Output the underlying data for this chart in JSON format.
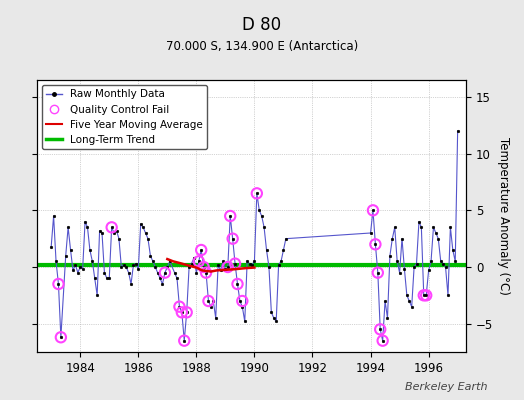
{
  "title": "D 80",
  "subtitle": "70.000 S, 134.900 E (Antarctica)",
  "ylabel": "Temperature Anomaly (°C)",
  "credit": "Berkeley Earth",
  "ylim": [
    -7.5,
    16.5
  ],
  "yticks": [
    -5,
    0,
    5,
    10,
    15
  ],
  "xlim": [
    1982.5,
    1997.3
  ],
  "xticks": [
    1984,
    1986,
    1988,
    1990,
    1992,
    1994,
    1996
  ],
  "bg_color": "#e8e8e8",
  "plot_bg_color": "#ffffff",
  "raw_line_color": "#5555cc",
  "raw_marker_color": "#000000",
  "qc_fail_color": "#ff44ff",
  "moving_avg_color": "#dd0000",
  "trend_color": "#00bb00",
  "raw_data_times": [
    1983.0,
    1983.083,
    1983.167,
    1983.25,
    1983.333,
    1983.5,
    1983.583,
    1983.667,
    1983.75,
    1983.833,
    1983.917,
    1984.0,
    1984.083,
    1984.167,
    1984.25,
    1984.333,
    1984.417,
    1984.5,
    1984.583,
    1984.667,
    1984.75,
    1984.833,
    1984.917,
    1985.0,
    1985.083,
    1985.167,
    1985.25,
    1985.333,
    1985.417,
    1985.5,
    1985.583,
    1985.667,
    1985.75,
    1985.833,
    1985.917,
    1986.0,
    1986.083,
    1986.167,
    1986.25,
    1986.333,
    1986.417,
    1986.5,
    1986.583,
    1986.667,
    1986.75,
    1986.833,
    1986.917,
    1987.0,
    1987.083,
    1987.25,
    1987.333,
    1987.417,
    1987.5,
    1987.583,
    1987.667,
    1987.75,
    1987.833,
    1987.917,
    1988.0,
    1988.083,
    1988.167,
    1988.25,
    1988.333,
    1988.417,
    1988.5,
    1988.583,
    1988.667,
    1988.75,
    1988.833,
    1988.917,
    1989.0,
    1989.083,
    1989.167,
    1989.25,
    1989.333,
    1989.417,
    1989.5,
    1989.583,
    1989.667,
    1989.75,
    1989.833,
    1989.917,
    1990.0,
    1990.083,
    1990.167,
    1990.25,
    1990.333,
    1990.417,
    1990.5,
    1990.583,
    1990.667,
    1990.75,
    1990.833,
    1990.917,
    1991.0,
    1991.083,
    1994.0,
    1994.083,
    1994.167,
    1994.25,
    1994.333,
    1994.417,
    1994.5,
    1994.583,
    1994.667,
    1994.75,
    1994.833,
    1994.917,
    1995.0,
    1995.083,
    1995.167,
    1995.25,
    1995.333,
    1995.417,
    1995.5,
    1995.583,
    1995.667,
    1995.75,
    1995.833,
    1995.917,
    1996.0,
    1996.083,
    1996.167,
    1996.25,
    1996.333,
    1996.417,
    1996.5,
    1996.583,
    1996.667,
    1996.75,
    1996.833,
    1996.917,
    1997.0
  ],
  "raw_data_values": [
    1.8,
    4.5,
    0.5,
    -1.5,
    -6.2,
    1.0,
    3.5,
    1.5,
    -0.3,
    0.2,
    -0.5,
    0.0,
    -0.2,
    4.0,
    3.5,
    1.5,
    0.5,
    -1.0,
    -2.5,
    3.2,
    3.0,
    -0.5,
    -1.0,
    -1.0,
    3.5,
    3.0,
    3.2,
    2.5,
    0.0,
    0.2,
    0.0,
    -0.5,
    -1.5,
    0.2,
    0.3,
    -0.2,
    3.8,
    3.5,
    3.0,
    2.5,
    1.0,
    0.5,
    0.0,
    -0.5,
    -1.0,
    -1.5,
    -0.5,
    0.0,
    0.5,
    -0.5,
    -1.0,
    -3.5,
    -4.0,
    -6.5,
    -4.0,
    0.0,
    0.3,
    0.8,
    -0.5,
    0.5,
    1.5,
    0.0,
    -0.5,
    -3.0,
    -3.5,
    -3.0,
    -4.5,
    0.2,
    -0.3,
    0.5,
    -0.2,
    0.0,
    4.5,
    2.5,
    0.3,
    -1.5,
    -3.0,
    -3.5,
    -4.8,
    0.5,
    0.3,
    0.2,
    0.5,
    6.5,
    5.0,
    4.5,
    3.5,
    1.5,
    0.0,
    -4.0,
    -4.5,
    -4.8,
    0.2,
    0.5,
    1.5,
    2.5,
    3.0,
    5.0,
    2.0,
    -0.5,
    -5.5,
    -6.5,
    -3.0,
    -4.5,
    1.0,
    2.5,
    3.5,
    0.5,
    -0.5,
    2.5,
    -0.2,
    -2.5,
    -3.0,
    -3.5,
    0.0,
    0.3,
    4.0,
    3.5,
    -2.5,
    -2.5,
    -0.3,
    0.5,
    3.5,
    3.0,
    2.5,
    0.5,
    0.3,
    0.0,
    -2.5,
    3.5,
    1.5,
    0.5,
    12.0
  ],
  "qc_fail_times": [
    1983.25,
    1983.333,
    1985.083,
    1986.917,
    1987.417,
    1987.5,
    1987.583,
    1987.667,
    1988.083,
    1988.167,
    1988.25,
    1988.333,
    1988.417,
    1989.083,
    1989.167,
    1989.25,
    1989.333,
    1989.417,
    1989.583,
    1990.083,
    1994.083,
    1994.167,
    1994.25,
    1994.333,
    1994.417,
    1995.833,
    1995.917
  ],
  "qc_fail_values": [
    -1.5,
    -6.2,
    3.5,
    -0.5,
    -3.5,
    -4.0,
    -6.5,
    -4.0,
    0.5,
    1.5,
    0.0,
    -0.5,
    -3.0,
    0.0,
    4.5,
    2.5,
    0.3,
    -1.5,
    -3.0,
    6.5,
    5.0,
    2.0,
    -0.5,
    -5.5,
    -6.5,
    -2.5,
    -2.5
  ],
  "moving_avg_times": [
    1987.0,
    1987.2,
    1987.5,
    1987.7,
    1988.0,
    1988.2,
    1988.5,
    1988.7,
    1989.0,
    1989.3,
    1989.7,
    1990.0
  ],
  "moving_avg_values": [
    0.7,
    0.5,
    0.3,
    0.15,
    -0.05,
    -0.3,
    -0.4,
    -0.3,
    -0.25,
    -0.2,
    -0.1,
    -0.05
  ],
  "trend_x": [
    1982.5,
    1997.3
  ],
  "trend_y": [
    0.2,
    0.2
  ],
  "legend_loc": "upper left"
}
